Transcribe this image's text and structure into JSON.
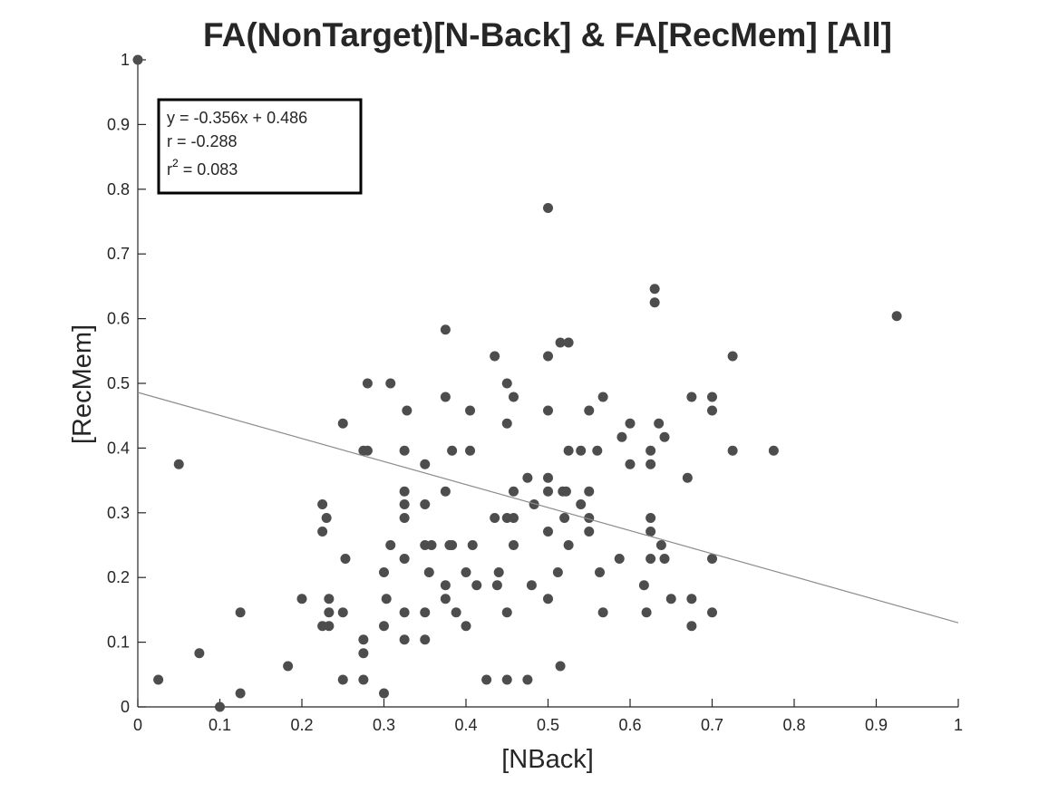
{
  "chart_data": {
    "type": "scatter",
    "title": "FA(NonTarget)[N-Back] & FA[RecMem] [All]",
    "xlabel": "[NBack]",
    "ylabel": "[RecMem]",
    "xlim": [
      0,
      1
    ],
    "ylim": [
      0,
      1
    ],
    "xticks": [
      "0",
      "0.1",
      "0.2",
      "0.3",
      "0.4",
      "0.5",
      "0.6",
      "0.7",
      "0.8",
      "0.9",
      "1"
    ],
    "yticks": [
      "0",
      "0.1",
      "0.2",
      "0.3",
      "0.4",
      "0.5",
      "0.6",
      "0.7",
      "0.8",
      "0.9",
      "1"
    ],
    "grid": false,
    "marker_color": "#4d4d4d",
    "fit_line_color": "#8c8c8c",
    "fit": {
      "slope": -0.356,
      "intercept": 0.486
    },
    "stats": {
      "equation": "y = -0.356x + 0.486",
      "r": "r = -0.288",
      "r2_prefix": "r",
      "r2_exp": "2",
      "r2_value": " = 0.083"
    },
    "points": [
      [
        0,
        1
      ],
      [
        0.025,
        0.042
      ],
      [
        0.05,
        0.375
      ],
      [
        0.075,
        0.083
      ],
      [
        0.1,
        0.0
      ],
      [
        0.125,
        0.146
      ],
      [
        0.125,
        0.021
      ],
      [
        0.183,
        0.063
      ],
      [
        0.2,
        0.167
      ],
      [
        0.225,
        0.313
      ],
      [
        0.225,
        0.271
      ],
      [
        0.23,
        0.292
      ],
      [
        0.225,
        0.125
      ],
      [
        0.233,
        0.146
      ],
      [
        0.233,
        0.167
      ],
      [
        0.233,
        0.125
      ],
      [
        0.25,
        0.438
      ],
      [
        0.253,
        0.229
      ],
      [
        0.25,
        0.146
      ],
      [
        0.25,
        0.042
      ],
      [
        0.275,
        0.396
      ],
      [
        0.28,
        0.396
      ],
      [
        0.28,
        0.5
      ],
      [
        0.275,
        0.104
      ],
      [
        0.275,
        0.083
      ],
      [
        0.275,
        0.042
      ],
      [
        0.3,
        0.208
      ],
      [
        0.3,
        0.125
      ],
      [
        0.303,
        0.167
      ],
      [
        0.3,
        0.021
      ],
      [
        0.308,
        0.5
      ],
      [
        0.308,
        0.25
      ],
      [
        0.325,
        0.396
      ],
      [
        0.325,
        0.333
      ],
      [
        0.325,
        0.313
      ],
      [
        0.325,
        0.292
      ],
      [
        0.325,
        0.229
      ],
      [
        0.325,
        0.146
      ],
      [
        0.325,
        0.104
      ],
      [
        0.328,
        0.458
      ],
      [
        0.35,
        0.375
      ],
      [
        0.35,
        0.313
      ],
      [
        0.35,
        0.25
      ],
      [
        0.35,
        0.146
      ],
      [
        0.35,
        0.104
      ],
      [
        0.355,
        0.208
      ],
      [
        0.358,
        0.25
      ],
      [
        0.375,
        0.583
      ],
      [
        0.375,
        0.479
      ],
      [
        0.375,
        0.333
      ],
      [
        0.375,
        0.188
      ],
      [
        0.375,
        0.167
      ],
      [
        0.38,
        0.25
      ],
      [
        0.383,
        0.25
      ],
      [
        0.383,
        0.396
      ],
      [
        0.388,
        0.146
      ],
      [
        0.4,
        0.208
      ],
      [
        0.4,
        0.125
      ],
      [
        0.405,
        0.458
      ],
      [
        0.405,
        0.396
      ],
      [
        0.408,
        0.25
      ],
      [
        0.413,
        0.188
      ],
      [
        0.425,
        0.042
      ],
      [
        0.435,
        0.542
      ],
      [
        0.435,
        0.292
      ],
      [
        0.438,
        0.188
      ],
      [
        0.44,
        0.208
      ],
      [
        0.45,
        0.5
      ],
      [
        0.45,
        0.438
      ],
      [
        0.45,
        0.292
      ],
      [
        0.45,
        0.146
      ],
      [
        0.45,
        0.042
      ],
      [
        0.458,
        0.479
      ],
      [
        0.458,
        0.333
      ],
      [
        0.458,
        0.292
      ],
      [
        0.458,
        0.25
      ],
      [
        0.475,
        0.354
      ],
      [
        0.475,
        0.042
      ],
      [
        0.48,
        0.188
      ],
      [
        0.483,
        0.313
      ],
      [
        0.5,
        0.771
      ],
      [
        0.5,
        0.542
      ],
      [
        0.5,
        0.458
      ],
      [
        0.5,
        0.354
      ],
      [
        0.5,
        0.333
      ],
      [
        0.5,
        0.271
      ],
      [
        0.5,
        0.167
      ],
      [
        0.512,
        0.208
      ],
      [
        0.515,
        0.563
      ],
      [
        0.515,
        0.063
      ],
      [
        0.518,
        0.333
      ],
      [
        0.52,
        0.292
      ],
      [
        0.522,
        0.333
      ],
      [
        0.525,
        0.563
      ],
      [
        0.525,
        0.396
      ],
      [
        0.525,
        0.25
      ],
      [
        0.54,
        0.396
      ],
      [
        0.54,
        0.313
      ],
      [
        0.55,
        0.458
      ],
      [
        0.55,
        0.333
      ],
      [
        0.55,
        0.292
      ],
      [
        0.55,
        0.271
      ],
      [
        0.56,
        0.396
      ],
      [
        0.563,
        0.208
      ],
      [
        0.567,
        0.479
      ],
      [
        0.567,
        0.146
      ],
      [
        0.587,
        0.229
      ],
      [
        0.59,
        0.417
      ],
      [
        0.6,
        0.438
      ],
      [
        0.6,
        0.375
      ],
      [
        0.617,
        0.188
      ],
      [
        0.62,
        0.146
      ],
      [
        0.625,
        0.396
      ],
      [
        0.625,
        0.375
      ],
      [
        0.625,
        0.292
      ],
      [
        0.625,
        0.271
      ],
      [
        0.625,
        0.229
      ],
      [
        0.63,
        0.646
      ],
      [
        0.63,
        0.625
      ],
      [
        0.635,
        0.438
      ],
      [
        0.638,
        0.25
      ],
      [
        0.642,
        0.417
      ],
      [
        0.642,
        0.229
      ],
      [
        0.65,
        0.167
      ],
      [
        0.67,
        0.354
      ],
      [
        0.675,
        0.479
      ],
      [
        0.675,
        0.167
      ],
      [
        0.675,
        0.125
      ],
      [
        0.7,
        0.479
      ],
      [
        0.7,
        0.458
      ],
      [
        0.7,
        0.229
      ],
      [
        0.7,
        0.146
      ],
      [
        0.725,
        0.542
      ],
      [
        0.725,
        0.396
      ],
      [
        0.775,
        0.396
      ],
      [
        0.925,
        0.604
      ]
    ]
  }
}
